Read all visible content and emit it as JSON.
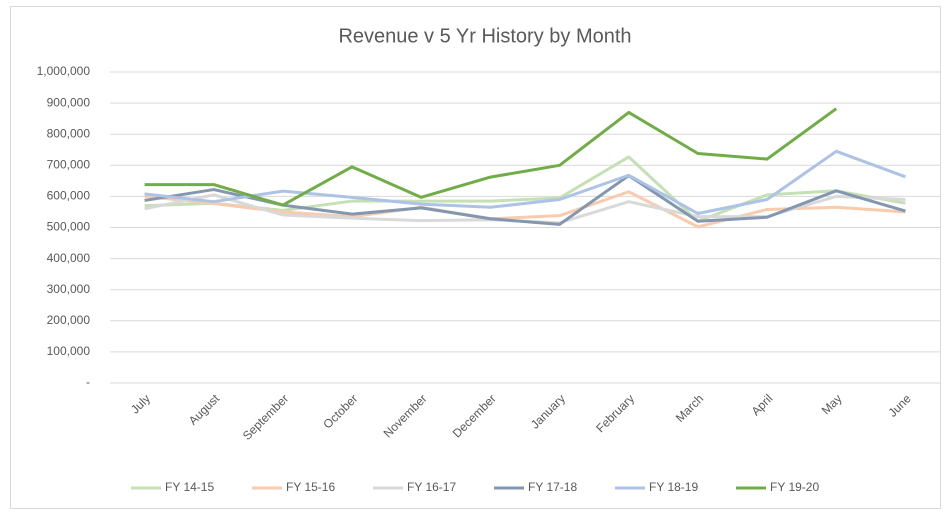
{
  "chart_data": {
    "type": "line",
    "title": "Revenue v 5 Yr History by Month",
    "categories": [
      "July",
      "August",
      "September",
      "October",
      "November",
      "December",
      "January",
      "February",
      "March",
      "April",
      "May",
      "June"
    ],
    "ylim": [
      0,
      1000000
    ],
    "yticks": [
      {
        "value": 0,
        "label": "-"
      },
      {
        "value": 100000,
        "label": "100,000"
      },
      {
        "value": 200000,
        "label": "200,000"
      },
      {
        "value": 300000,
        "label": "300,000"
      },
      {
        "value": 400000,
        "label": "400,000"
      },
      {
        "value": 500000,
        "label": "500,000"
      },
      {
        "value": 600000,
        "label": "600,000"
      },
      {
        "value": 700000,
        "label": "700,000"
      },
      {
        "value": 800000,
        "label": "800,000"
      },
      {
        "value": 900000,
        "label": "900,000"
      },
      {
        "value": 1000000,
        "label": "1,000,000"
      }
    ],
    "grid": true,
    "legend": "bottom",
    "series": [
      {
        "name": "FY 14-15",
        "color": "#c5e0b4",
        "values": [
          570000,
          578000,
          555000,
          585000,
          585000,
          585000,
          595000,
          727000,
          520000,
          605000,
          618000,
          578000
        ]
      },
      {
        "name": "FY 15-16",
        "color": "#f8cbad",
        "values": [
          600000,
          577000,
          550000,
          535000,
          565000,
          528000,
          538000,
          615000,
          502000,
          558000,
          565000,
          550000
        ]
      },
      {
        "name": "FY 16-17",
        "color": "#d9d9d9",
        "values": [
          560000,
          605000,
          540000,
          530000,
          522000,
          525000,
          515000,
          583000,
          535000,
          535000,
          600000,
          590000
        ]
      },
      {
        "name": "FY 17-18",
        "color": "#8497b0",
        "values": [
          587000,
          622000,
          572000,
          543000,
          563000,
          528000,
          510000,
          667000,
          520000,
          533000,
          618000,
          553000
        ]
      },
      {
        "name": "FY 18-19",
        "color": "#adc3e6",
        "values": [
          608000,
          583000,
          617000,
          597000,
          575000,
          565000,
          590000,
          668000,
          545000,
          590000,
          745000,
          663000
        ]
      },
      {
        "name": "FY 19-20",
        "color": "#70ad47",
        "values": [
          638000,
          638000,
          572000,
          695000,
          597000,
          662000,
          700000,
          870000,
          738000,
          720000,
          882000,
          null
        ]
      }
    ]
  }
}
